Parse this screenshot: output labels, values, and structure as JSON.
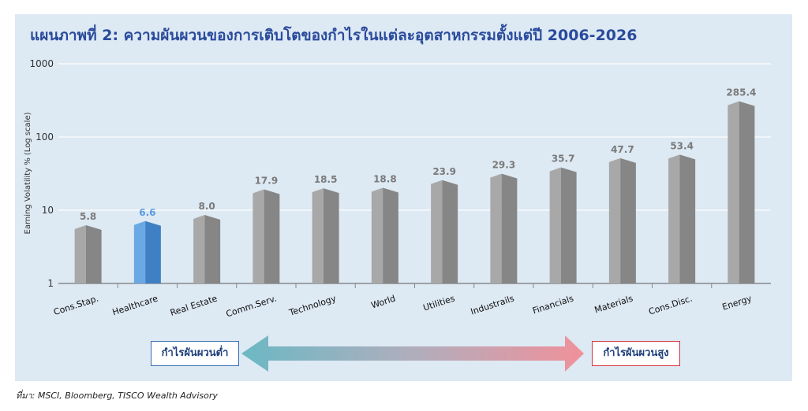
{
  "title": "แผนภาพที่ 2: ความผันผวนของการเติบโตของกำไรในแต่ละอุตสาหกรรมตั้งแต่ปี 2006-2026",
  "source": "ที่มา: MSCI, Bloomberg, TISCO Wealth Advisory",
  "legend": {
    "low_label": "กำไรผันผวนต่ำ",
    "high_label": "กำไรผันผวนสูง"
  },
  "colors": {
    "panel_bg": "#dde9f3",
    "bar_gray": "#9a9a9a",
    "bar_highlight": "#4d8fd1",
    "title": "#2a4a9c",
    "label_gray": "#7a7a7a",
    "label_highlight": "#5a9be0",
    "arrow_left": "#6bb8c4",
    "arrow_right": "#f0919b"
  },
  "chart_data": {
    "type": "bar",
    "title": "แผนภาพที่ 2: ความผันผวนของการเติบโตของกำไรในแต่ละอุตสาหกรรมตั้งแต่ปี 2006-2026",
    "ylabel": "Earning Volatility % (Log scale)",
    "xlabel": "",
    "yscale": "log",
    "ylim": [
      1,
      1000
    ],
    "yticks": [
      "1",
      "10",
      "100",
      "1000"
    ],
    "grid": true,
    "highlight": "Healthcare",
    "categories": [
      "Cons.Stap.",
      "Healthcare",
      "Real Estate",
      "Comm.Serv.",
      "Technology",
      "World",
      "Utilities",
      "Industrails",
      "Financials",
      "Materials",
      "Cons.Disc.",
      "Energy"
    ],
    "values": [
      5.8,
      6.6,
      8.0,
      17.9,
      18.5,
      18.8,
      23.9,
      29.3,
      35.7,
      47.7,
      53.4,
      285.4
    ],
    "value_labels": [
      "5.8",
      "6.6",
      "8.0",
      "17.9",
      "18.5",
      "18.8",
      "23.9",
      "29.3",
      "35.7",
      "47.7",
      "53.4",
      "285.4"
    ]
  }
}
